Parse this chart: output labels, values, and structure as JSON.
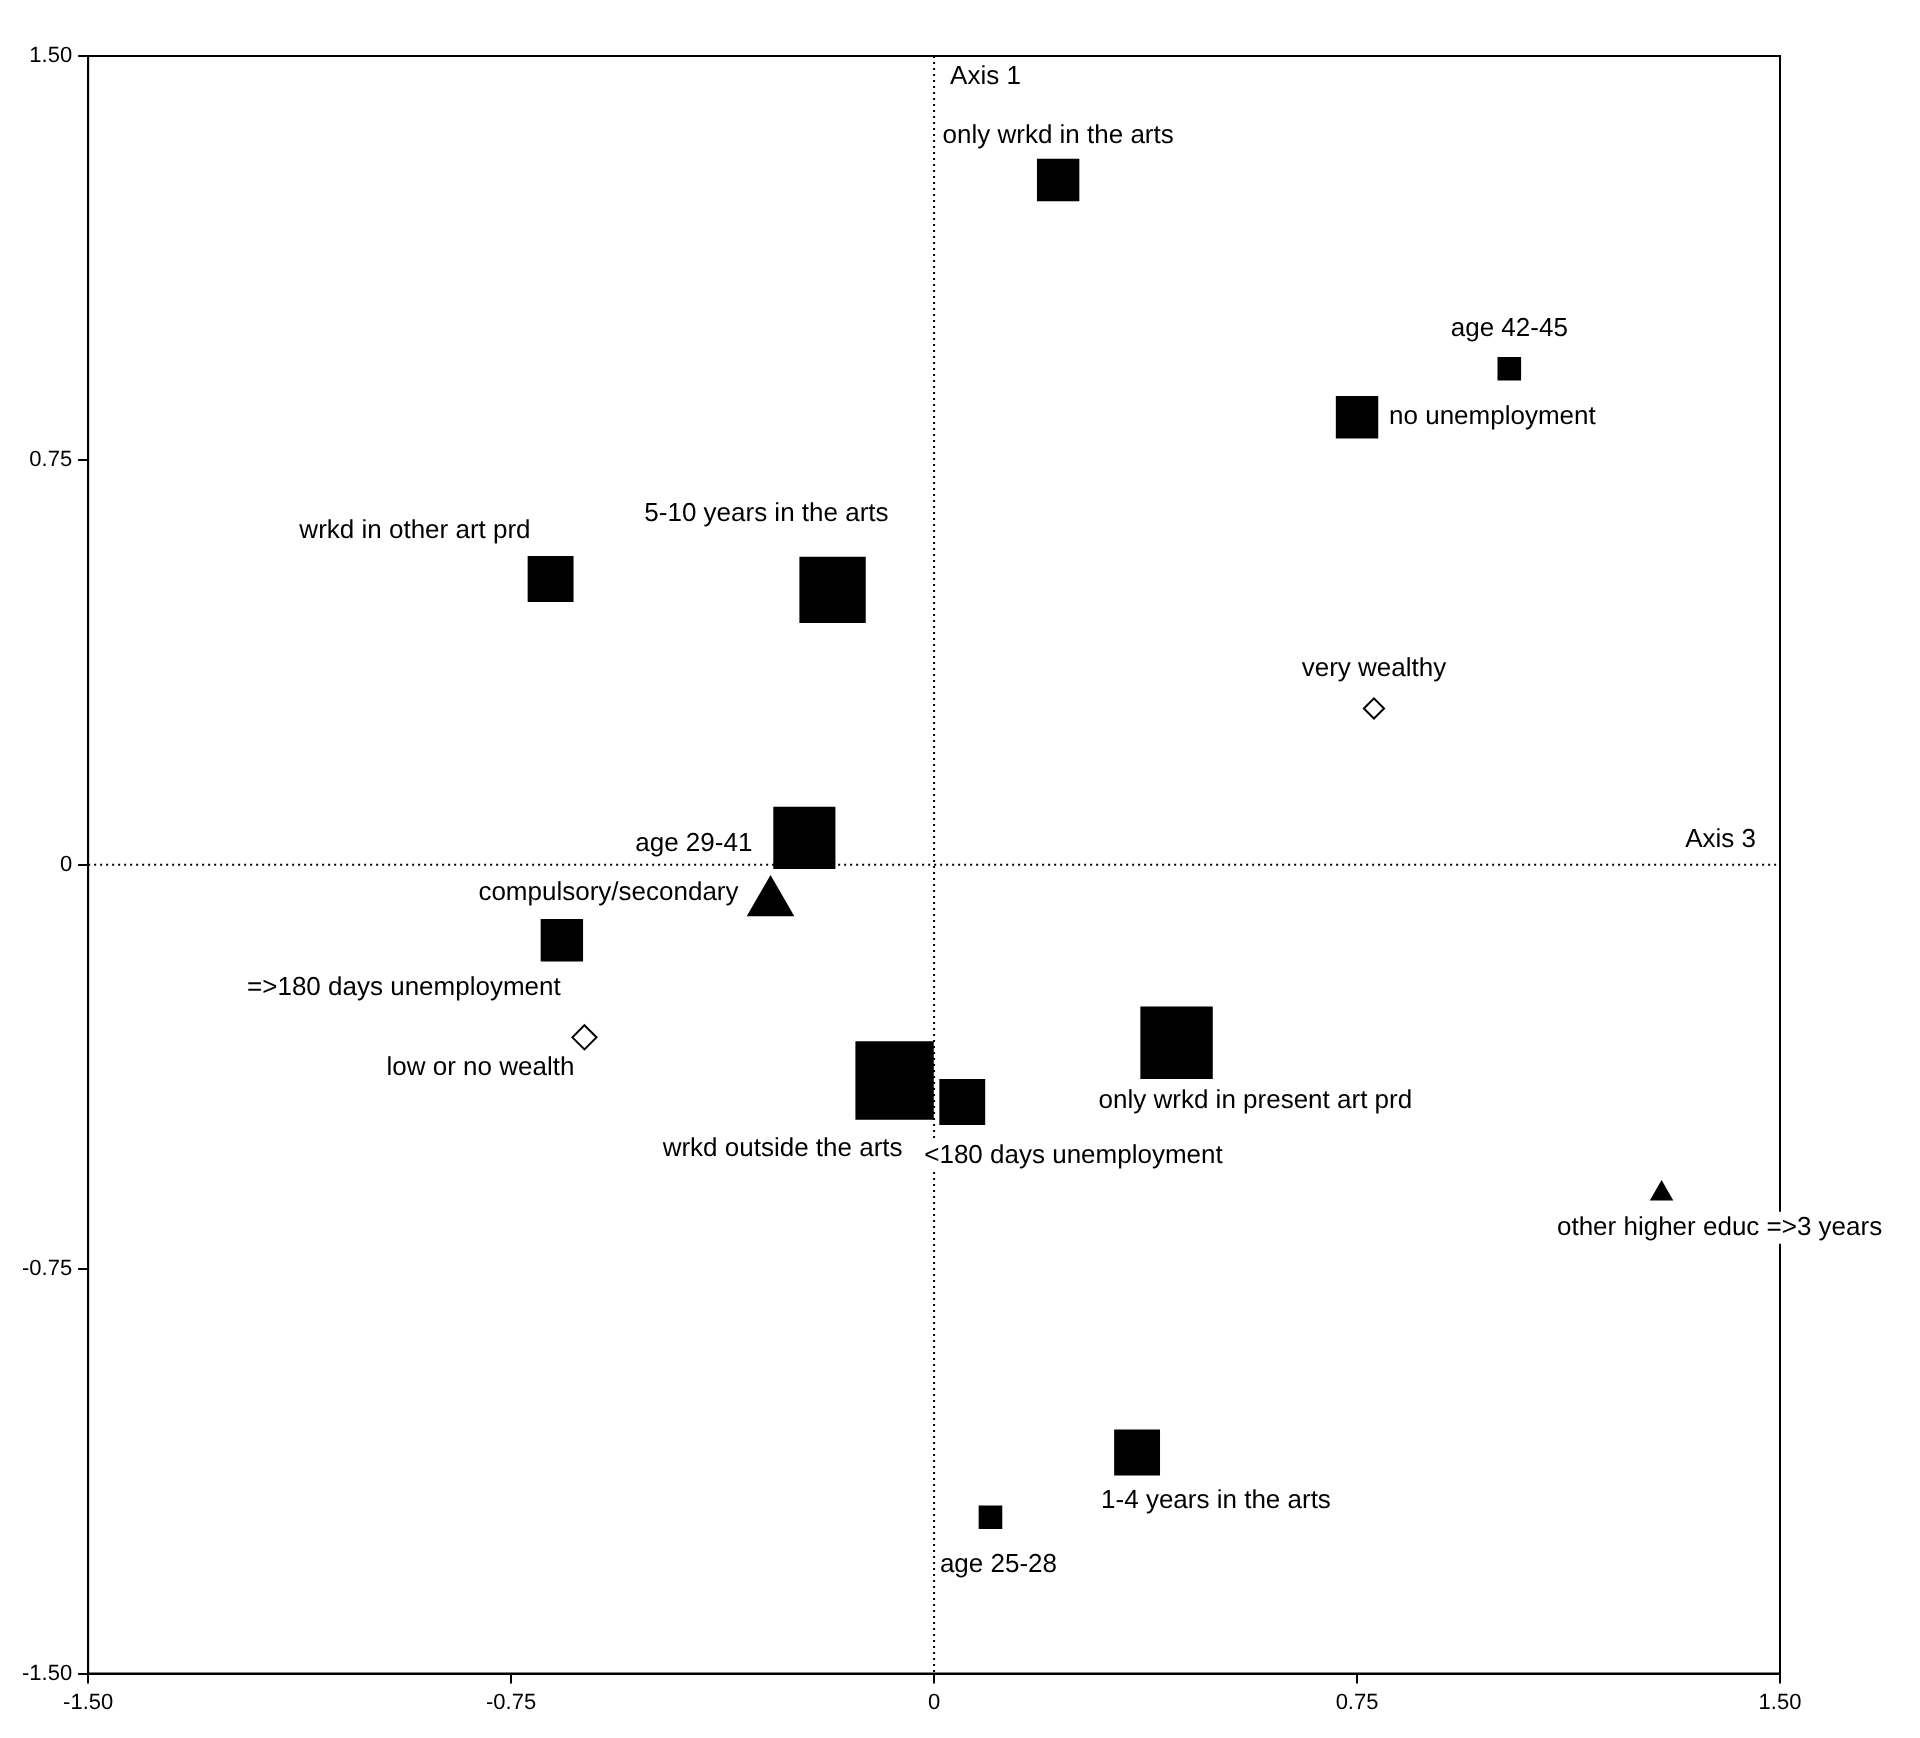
{
  "chart_data": {
    "type": "bubble",
    "series": [
      {
        "marker": "square",
        "color": "#000000",
        "x": [
          0.22,
          1.02,
          0.75,
          -0.68,
          -0.18,
          -0.23,
          -0.66,
          -0.07,
          0.05,
          0.43,
          0.36,
          0.1
        ],
        "values": [
          1.27,
          0.92,
          0.83,
          0.53,
          0.51,
          0.05,
          -0.14,
          -0.4,
          -0.44,
          -0.33,
          -1.09,
          -1.21
        ],
        "sizes": [
          0.28,
          0.08,
          0.28,
          0.33,
          0.71,
          0.62,
          0.28,
          1,
          0.33,
          0.85,
          0.33,
          0.08
        ],
        "value_labels": [
          "only wrkd in the arts",
          "age 42-45",
          "no unemployment",
          "wrkd in other art prd",
          "5-10 years in the arts",
          "age 29-41",
          "=>180 days unemployment",
          "wrkd outside the arts",
          "<180 days unemployment",
          "only wrkd in present art prd",
          "1-4 years in the arts",
          "age 25-28"
        ]
      },
      {
        "marker": "diamond",
        "color": "#000000",
        "x": [
          0.78,
          -0.62
        ],
        "values": [
          0.29,
          -0.32
        ],
        "sizes": [
          0.035,
          0.05
        ],
        "value_labels": [
          "very wealthy",
          "low or no wealth"
        ]
      },
      {
        "marker": "triangle",
        "color": "#000000",
        "x": [
          -0.29,
          1.29
        ],
        "values": [
          -0.07,
          -0.61
        ],
        "sizes": [
          0.145,
          0.03
        ],
        "value_labels": [
          "compulsory/secondary",
          "other higher educ =>3 years"
        ]
      }
    ],
    "xlim": [
      -1.5,
      1.5
    ],
    "ylim": [
      -1.5,
      1.5
    ],
    "xticks": [
      {
        "value": -1.5,
        "label": "-1.50"
      },
      {
        "value": -0.75,
        "label": "-0.75"
      },
      0,
      {
        "value": 0.75,
        "label": "0.75"
      },
      {
        "value": 1.5,
        "label": "1.50"
      }
    ],
    "yticks": [
      {
        "value": -1.5,
        "label": "-1.50"
      },
      {
        "value": -0.75,
        "label": "-0.75"
      },
      0,
      {
        "value": 0.75,
        "label": "0.75"
      },
      {
        "value": 1.5,
        "label": "1.50"
      }
    ],
    "ref_lines": [
      {
        "axis": "x",
        "value": 0,
        "label": "Axis 1",
        "line_style": "dotted"
      },
      {
        "axis": "y",
        "value": 0,
        "label": "Axis 3",
        "line_style": "dotted"
      }
    ],
    "grid": false,
    "legend": false
  }
}
